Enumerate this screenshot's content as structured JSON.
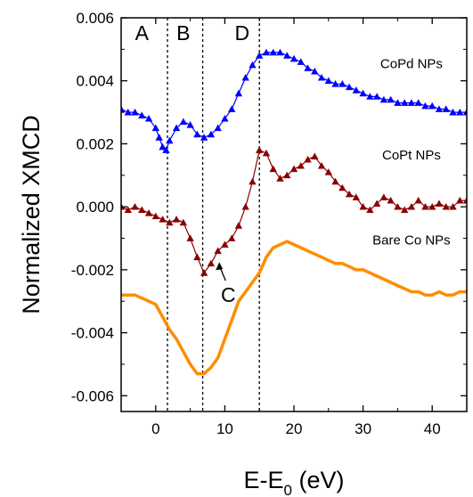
{
  "chart_data": {
    "type": "line",
    "xlabel": "E-E",
    "xlabel_sub": "0",
    "xlabel_unit": " (eV)",
    "ylabel": "Normalized XMCD",
    "xlim": [
      -5,
      45
    ],
    "ylim": [
      -0.0065,
      0.006
    ],
    "xticks": [
      0,
      10,
      20,
      30,
      40
    ],
    "xtick_labels": [
      "0",
      "10",
      "20",
      "30",
      "40"
    ],
    "yticks": [
      -0.006,
      -0.004,
      -0.002,
      0.0,
      0.002,
      0.004,
      0.006
    ],
    "ytick_labels": [
      "-0.006",
      "-0.004",
      "-0.002",
      "0.000",
      "0.002",
      "0.004",
      "0.006"
    ],
    "vlines": [
      1.7,
      6.8,
      15.0
    ],
    "regions": [
      {
        "label": "A",
        "x": -2
      },
      {
        "label": "B",
        "x": 4
      },
      {
        "label": "D",
        "x": 12.5
      }
    ],
    "annotation": {
      "label": "C",
      "x_text": 10.5,
      "y_text": -0.0028,
      "x_arrow": 9.2,
      "y_arrow": -0.0017
    },
    "grid": false,
    "series": [
      {
        "name": "CoPd NPs",
        "color": "#0000ff",
        "marker": "triangle",
        "label_x": 37,
        "label_y": 0.0044,
        "x": [
          -5,
          -4,
          -3,
          -2,
          -1,
          0,
          0.5,
          1,
          1.5,
          2,
          3,
          4,
          5,
          6,
          7,
          8,
          9,
          10,
          11,
          12,
          13,
          14,
          15,
          16,
          17,
          18,
          19,
          20,
          21,
          22,
          23,
          24,
          25,
          26,
          27,
          28,
          29,
          30,
          31,
          32,
          33,
          34,
          35,
          36,
          37,
          38,
          39,
          40,
          41,
          42,
          43,
          44,
          45
        ],
        "y": [
          0.0031,
          0.003,
          0.003,
          0.0029,
          0.0028,
          0.0025,
          0.0022,
          0.0019,
          0.0018,
          0.0021,
          0.0025,
          0.0027,
          0.0026,
          0.0023,
          0.0022,
          0.0023,
          0.0025,
          0.0028,
          0.0031,
          0.0036,
          0.0041,
          0.0045,
          0.0048,
          0.0049,
          0.0049,
          0.0049,
          0.0048,
          0.0047,
          0.0046,
          0.0044,
          0.0043,
          0.0041,
          0.004,
          0.0039,
          0.0039,
          0.0038,
          0.0037,
          0.0036,
          0.0035,
          0.0035,
          0.0034,
          0.0034,
          0.0033,
          0.0033,
          0.0033,
          0.0033,
          0.0032,
          0.0032,
          0.0031,
          0.0031,
          0.003,
          0.003,
          0.003
        ]
      },
      {
        "name": "CoPt NPs",
        "color": "#8b0000",
        "marker": "triangle",
        "label_x": 37,
        "label_y": 0.0015,
        "x": [
          -5,
          -4,
          -3,
          -2,
          -1,
          0,
          1,
          2,
          3,
          4,
          5,
          6,
          7,
          8,
          9,
          10,
          11,
          12,
          13,
          14,
          15,
          16,
          17,
          18,
          19,
          20,
          21,
          22,
          23,
          24,
          25,
          26,
          27,
          28,
          29,
          30,
          31,
          32,
          33,
          34,
          35,
          36,
          37,
          38,
          39,
          40,
          41,
          42,
          43,
          44,
          45
        ],
        "y": [
          0.0,
          -0.0001,
          0.0,
          -0.0001,
          -0.0002,
          -0.0003,
          -0.0004,
          -0.0005,
          -0.0004,
          -0.0005,
          -0.001,
          -0.0016,
          -0.0021,
          -0.0018,
          -0.0014,
          -0.0012,
          -0.001,
          -0.0006,
          0.0,
          0.0008,
          0.0018,
          0.0017,
          0.0012,
          0.0009,
          0.001,
          0.0012,
          0.0013,
          0.0015,
          0.0016,
          0.0013,
          0.0011,
          0.0008,
          0.0006,
          0.0004,
          0.0003,
          0.0,
          -0.0001,
          0.0001,
          0.0003,
          0.0002,
          0.0,
          -0.0001,
          0.0,
          0.0002,
          0.0,
          0.0,
          0.0001,
          0.0,
          0.0,
          0.0002,
          0.0002
        ]
      },
      {
        "name": "Bare Co NPs",
        "color": "#ff8c00",
        "marker": "none",
        "label_x": 37,
        "label_y": -0.0012,
        "x": [
          -5,
          -4,
          -3,
          -2,
          -1,
          0,
          1,
          2,
          3,
          4,
          5,
          6,
          7,
          8,
          9,
          10,
          11,
          12,
          13,
          14,
          15,
          16,
          17,
          18,
          19,
          20,
          21,
          22,
          23,
          24,
          25,
          26,
          27,
          28,
          29,
          30,
          31,
          32,
          33,
          34,
          35,
          36,
          37,
          38,
          39,
          40,
          41,
          42,
          43,
          44,
          45
        ],
        "y": [
          -0.0028,
          -0.0028,
          -0.0028,
          -0.0029,
          -0.003,
          -0.0031,
          -0.0035,
          -0.0039,
          -0.0042,
          -0.0046,
          -0.005,
          -0.0053,
          -0.0053,
          -0.0051,
          -0.0048,
          -0.0042,
          -0.0036,
          -0.003,
          -0.0027,
          -0.0024,
          -0.0021,
          -0.0016,
          -0.0013,
          -0.0012,
          -0.0011,
          -0.0012,
          -0.0013,
          -0.0014,
          -0.0015,
          -0.0016,
          -0.0017,
          -0.0018,
          -0.0018,
          -0.0019,
          -0.002,
          -0.002,
          -0.0021,
          -0.0022,
          -0.0023,
          -0.0024,
          -0.0025,
          -0.0026,
          -0.0027,
          -0.0027,
          -0.0028,
          -0.0028,
          -0.0027,
          -0.0028,
          -0.0028,
          -0.0027,
          -0.0027
        ]
      }
    ]
  }
}
